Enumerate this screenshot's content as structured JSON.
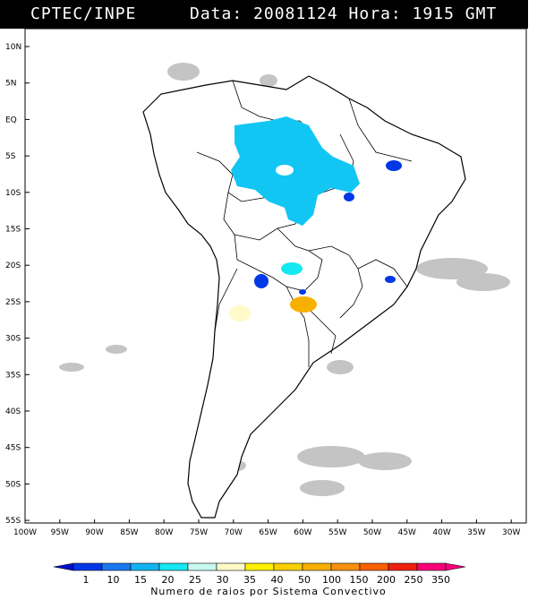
{
  "header": {
    "source": "CPTEC/INPE",
    "datetime": "Data: 20081124 Hora: 1915 GMT"
  },
  "lat_labels": [
    "10N",
    "5N",
    "EQ",
    "5S",
    "10S",
    "15S",
    "20S",
    "25S",
    "30S",
    "35S",
    "40S",
    "45S",
    "50S",
    "55S"
  ],
  "lon_labels": [
    "100W",
    "95W",
    "90W",
    "85W",
    "80W",
    "75W",
    "70W",
    "65W",
    "60W",
    "55W",
    "50W",
    "45W",
    "40W",
    "35W",
    "30W"
  ],
  "colorbar": {
    "labels": [
      "1",
      "10",
      "15",
      "20",
      "25",
      "30",
      "35",
      "40",
      "50",
      "100",
      "150",
      "200",
      "250",
      "350"
    ],
    "colors": [
      "#0010d0",
      "#0038e8",
      "#1a78f0",
      "#12b4f0",
      "#14e8f0",
      "#c8f8f0",
      "#fffac8",
      "#fff000",
      "#f8d000",
      "#f8b000",
      "#f89010",
      "#f86000",
      "#f02010",
      "#f8007a"
    ],
    "caption": "Numero de raios por Sistema Convectivo"
  }
}
